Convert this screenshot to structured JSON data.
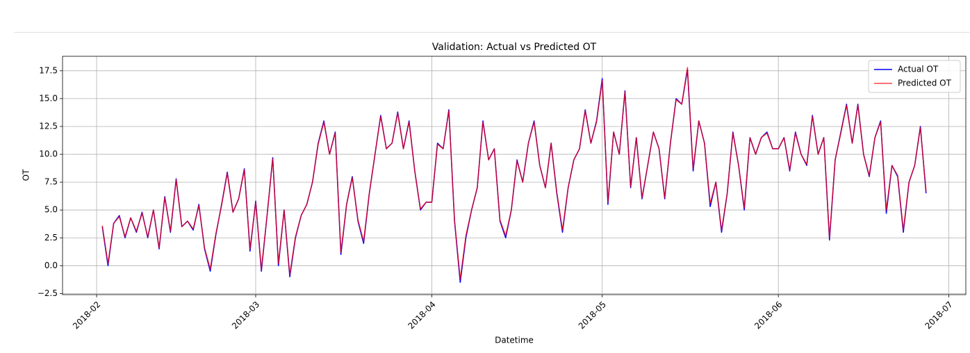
{
  "chart_data": {
    "type": "line",
    "title": "Validation: Actual vs Predicted OT",
    "x_label": "Datetime",
    "y_label": "OT",
    "x": [
      "2018-02-02",
      "2018-02-03",
      "2018-02-04",
      "2018-02-05",
      "2018-02-06",
      "2018-02-07",
      "2018-02-08",
      "2018-02-09",
      "2018-02-10",
      "2018-02-11",
      "2018-02-12",
      "2018-02-13",
      "2018-02-14",
      "2018-02-15",
      "2018-02-16",
      "2018-02-17",
      "2018-02-18",
      "2018-02-19",
      "2018-02-20",
      "2018-02-21",
      "2018-02-22",
      "2018-02-23",
      "2018-02-24",
      "2018-02-25",
      "2018-02-26",
      "2018-02-27",
      "2018-02-28",
      "2018-03-01",
      "2018-03-02",
      "2018-03-03",
      "2018-03-04",
      "2018-03-05",
      "2018-03-06",
      "2018-03-07",
      "2018-03-08",
      "2018-03-09",
      "2018-03-10",
      "2018-03-11",
      "2018-03-12",
      "2018-03-13",
      "2018-03-14",
      "2018-03-15",
      "2018-03-16",
      "2018-03-17",
      "2018-03-18",
      "2018-03-19",
      "2018-03-20",
      "2018-03-21",
      "2018-03-22",
      "2018-03-23",
      "2018-03-24",
      "2018-03-25",
      "2018-03-26",
      "2018-03-27",
      "2018-03-28",
      "2018-03-29",
      "2018-03-30",
      "2018-03-31",
      "2018-04-01",
      "2018-04-02",
      "2018-04-03",
      "2018-04-04",
      "2018-04-05",
      "2018-04-06",
      "2018-04-07",
      "2018-04-08",
      "2018-04-09",
      "2018-04-10",
      "2018-04-11",
      "2018-04-12",
      "2018-04-13",
      "2018-04-14",
      "2018-04-15",
      "2018-04-16",
      "2018-04-17",
      "2018-04-18",
      "2018-04-19",
      "2018-04-20",
      "2018-04-21",
      "2018-04-22",
      "2018-04-23",
      "2018-04-24",
      "2018-04-25",
      "2018-04-26",
      "2018-04-27",
      "2018-04-28",
      "2018-04-29",
      "2018-04-30",
      "2018-05-01",
      "2018-05-02",
      "2018-05-03",
      "2018-05-04",
      "2018-05-05",
      "2018-05-06",
      "2018-05-07",
      "2018-05-08",
      "2018-05-09",
      "2018-05-10",
      "2018-05-11",
      "2018-05-12",
      "2018-05-13",
      "2018-05-14",
      "2018-05-15",
      "2018-05-16",
      "2018-05-17",
      "2018-05-18",
      "2018-05-19",
      "2018-05-20",
      "2018-05-21",
      "2018-05-22",
      "2018-05-23",
      "2018-05-24",
      "2018-05-25",
      "2018-05-26",
      "2018-05-27",
      "2018-05-28",
      "2018-05-29",
      "2018-05-30",
      "2018-05-31",
      "2018-06-01",
      "2018-06-02",
      "2018-06-03",
      "2018-06-04",
      "2018-06-05",
      "2018-06-06",
      "2018-06-07",
      "2018-06-08",
      "2018-06-09",
      "2018-06-10",
      "2018-06-11",
      "2018-06-12",
      "2018-06-13",
      "2018-06-14",
      "2018-06-15",
      "2018-06-16",
      "2018-06-17",
      "2018-06-18",
      "2018-06-19",
      "2018-06-20",
      "2018-06-21",
      "2018-06-22",
      "2018-06-23",
      "2018-06-24",
      "2018-06-25",
      "2018-06-26",
      "2018-06-27"
    ],
    "series": [
      {
        "name": "Actual OT",
        "color": "#0000ff",
        "values": [
          3.5,
          0.0,
          3.8,
          4.5,
          2.5,
          4.3,
          3.0,
          4.8,
          2.5,
          5.0,
          1.5,
          6.2,
          3.0,
          7.8,
          3.5,
          4.0,
          3.2,
          5.5,
          1.5,
          -0.5,
          2.8,
          5.5,
          8.4,
          4.8,
          6.0,
          8.7,
          1.3,
          5.8,
          -0.5,
          4.5,
          9.7,
          0.0,
          5.0,
          -1.0,
          2.5,
          4.5,
          5.5,
          7.5,
          11.0,
          13.0,
          10.0,
          12.0,
          1.0,
          5.5,
          8.0,
          4.0,
          2.0,
          6.5,
          10.0,
          13.5,
          10.5,
          11.0,
          13.8,
          10.5,
          13.0,
          8.5,
          5.0,
          5.7,
          5.7,
          11.0,
          10.5,
          14.0,
          4.0,
          -1.5,
          2.5,
          5.0,
          7.0,
          13.0,
          9.5,
          10.5,
          4.0,
          2.5,
          5.0,
          9.5,
          7.5,
          11.0,
          13.0,
          9.0,
          7.0,
          11.0,
          6.5,
          3.0,
          7.0,
          9.5,
          10.5,
          14.0,
          11.0,
          13.0,
          16.8,
          5.5,
          12.0,
          10.0,
          15.7,
          7.0,
          11.5,
          6.0,
          9.0,
          12.0,
          10.5,
          6.0,
          11.0,
          15.0,
          14.5,
          17.6,
          8.5,
          13.0,
          11.0,
          5.3,
          7.5,
          3.0,
          6.5,
          12.0,
          9.0,
          5.0,
          11.5,
          10.0,
          11.5,
          12.0,
          10.5,
          10.5,
          11.5,
          8.5,
          12.0,
          10.0,
          9.0,
          13.5,
          10.0,
          11.5,
          2.3,
          9.5,
          12.0,
          14.5,
          11.0,
          14.5,
          10.0,
          8.0,
          11.5,
          13.0,
          4.7,
          9.0,
          8.0,
          3.0,
          7.5,
          9.0,
          12.5,
          6.5
        ]
      },
      {
        "name": "Predicted OT",
        "color": "#ff0000",
        "values": [
          3.6,
          0.2,
          3.8,
          4.4,
          2.6,
          4.3,
          3.1,
          4.7,
          2.6,
          5.0,
          1.6,
          6.1,
          3.1,
          7.7,
          3.5,
          4.0,
          3.3,
          5.4,
          1.6,
          -0.3,
          2.9,
          5.4,
          8.3,
          4.8,
          6.0,
          8.6,
          1.5,
          5.7,
          -0.3,
          4.5,
          9.6,
          0.2,
          5.0,
          -0.8,
          2.6,
          4.5,
          5.5,
          7.5,
          10.9,
          12.9,
          10.0,
          11.9,
          1.2,
          5.5,
          7.9,
          4.1,
          2.2,
          6.5,
          10.0,
          13.4,
          10.5,
          11.0,
          13.7,
          10.5,
          12.9,
          8.5,
          5.1,
          5.7,
          5.7,
          10.9,
          10.5,
          13.9,
          4.1,
          -1.2,
          2.7,
          5.0,
          7.0,
          12.9,
          9.5,
          10.5,
          4.1,
          2.7,
          5.0,
          9.4,
          7.5,
          11.0,
          12.9,
          9.0,
          7.0,
          11.0,
          6.6,
          3.2,
          7.0,
          9.5,
          10.5,
          13.9,
          11.0,
          12.9,
          16.6,
          5.7,
          12.0,
          10.0,
          15.6,
          7.1,
          11.5,
          6.1,
          9.0,
          12.0,
          10.5,
          6.1,
          11.0,
          14.9,
          14.5,
          17.8,
          8.7,
          13.0,
          11.0,
          5.6,
          7.5,
          3.2,
          6.5,
          11.9,
          9.0,
          5.2,
          11.5,
          10.0,
          11.5,
          11.9,
          10.5,
          10.5,
          11.5,
          8.6,
          11.9,
          10.0,
          9.1,
          13.4,
          10.0,
          11.5,
          2.5,
          9.5,
          11.9,
          14.4,
          11.0,
          14.4,
          10.0,
          8.1,
          11.5,
          12.9,
          5.0,
          9.0,
          8.1,
          3.2,
          7.5,
          9.0,
          12.4,
          6.7
        ]
      }
    ],
    "xlim": [
      "2018-01-26",
      "2018-07-04"
    ],
    "xticks": [
      {
        "value": "2018-02-01",
        "label": "2018-02"
      },
      {
        "value": "2018-03-01",
        "label": "2018-03"
      },
      {
        "value": "2018-04-01",
        "label": "2018-04"
      },
      {
        "value": "2018-05-01",
        "label": "2018-05"
      },
      {
        "value": "2018-06-01",
        "label": "2018-06"
      },
      {
        "value": "2018-07-01",
        "label": "2018-07"
      }
    ],
    "ylim": [
      -2.6,
      18.8
    ],
    "yticks": [
      {
        "value": -2.5,
        "label": "−2.5"
      },
      {
        "value": 0,
        "label": "0.0"
      },
      2.5,
      {
        "value": 5,
        "label": "5.0"
      },
      7.5,
      {
        "value": 10,
        "label": "10.0"
      },
      12.5,
      {
        "value": 15,
        "label": "15.0"
      },
      17.5
    ],
    "grid": true,
    "legend": "upper right"
  }
}
